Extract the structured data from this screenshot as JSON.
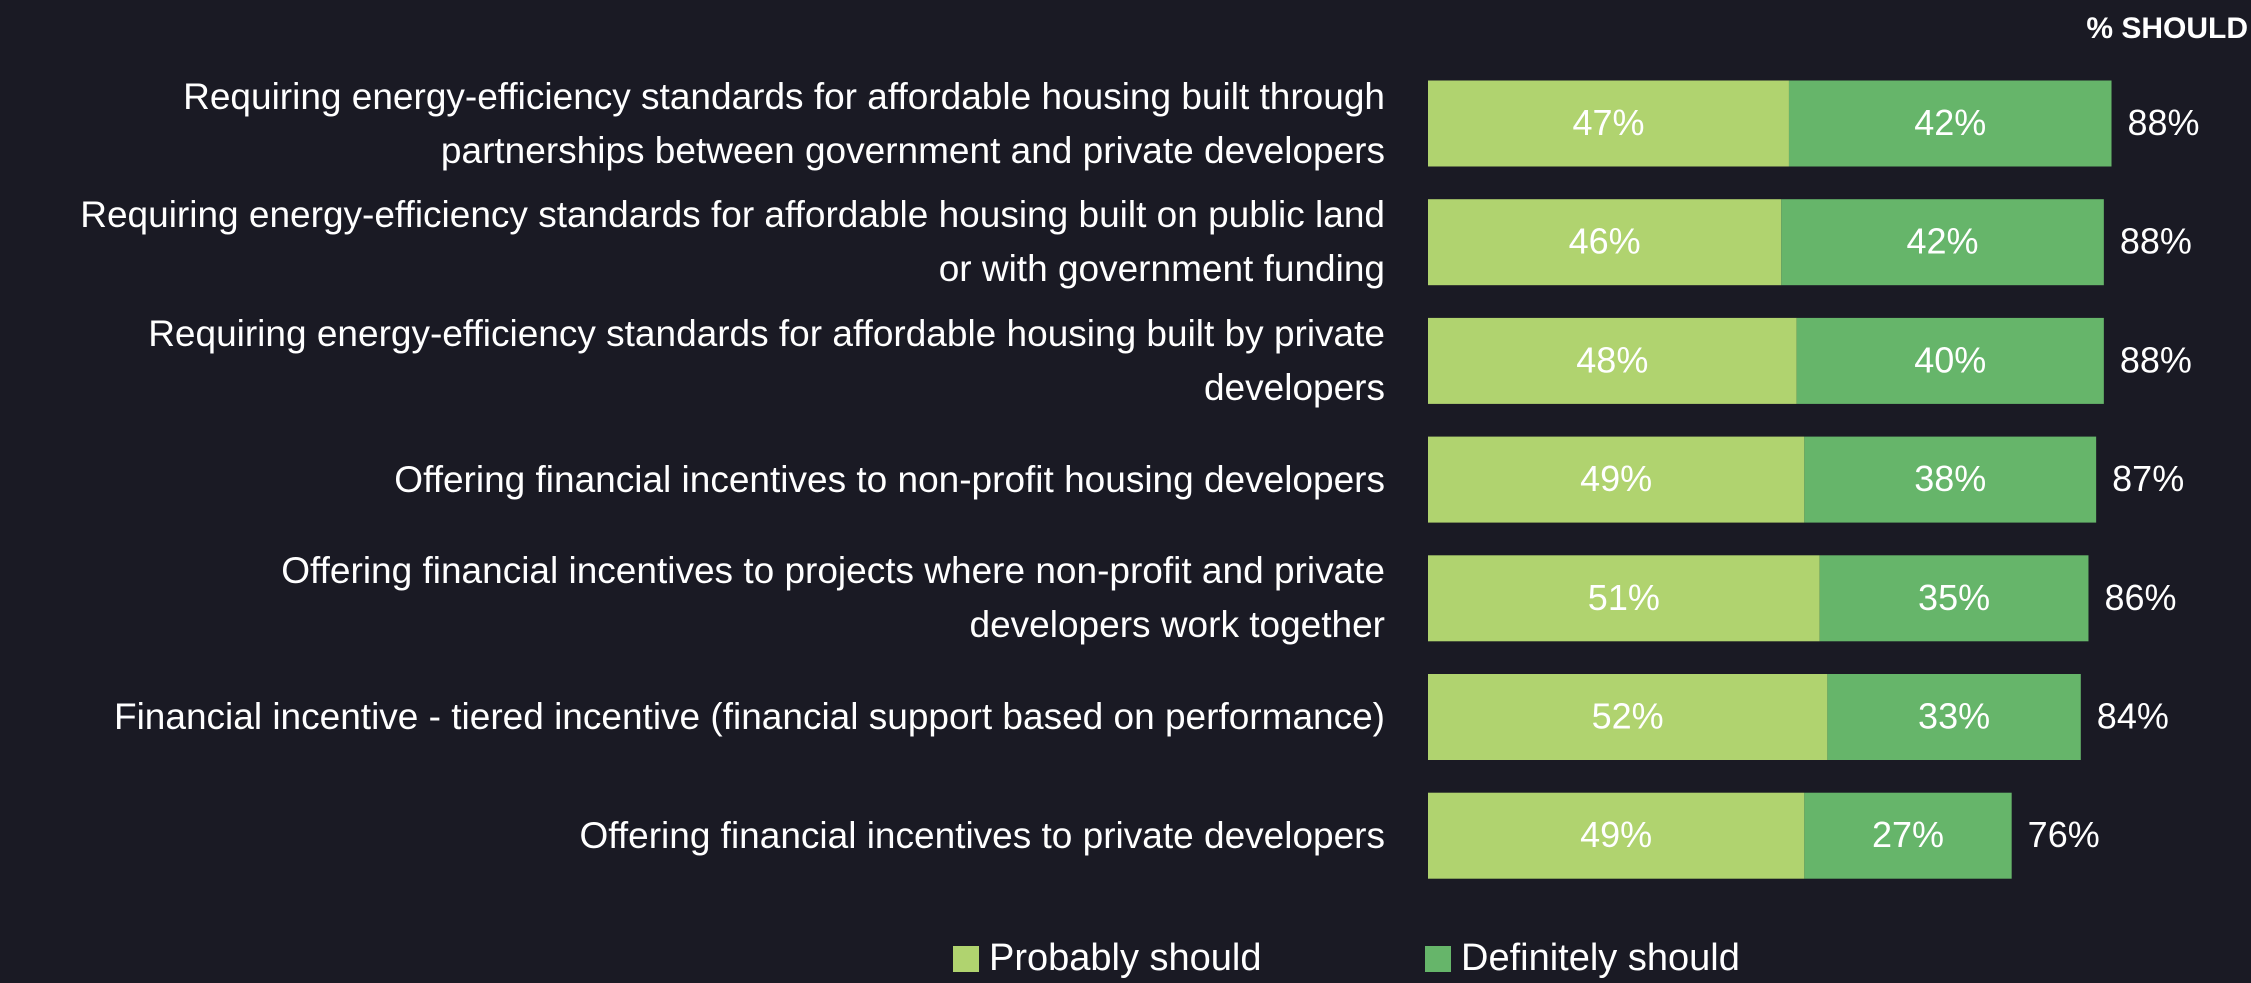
{
  "chart_data": {
    "type": "stacked-bar-horizontal",
    "totals_label": "% SHOULD",
    "categories": [
      "Requiring energy-efficiency standards for affordable housing built through\npartnerships between government and private developers",
      "Requiring energy-efficiency standards for affordable housing built on public land\nor with government funding",
      "Requiring energy-efficiency standards for affordable housing built by private\ndevelopers",
      "Offering financial incentives to non-profit housing developers",
      "Offering financial incentives to projects where non-profit and private\ndevelopers work together",
      "Financial incentive - tiered incentive (financial support based on performance)",
      "Offering financial incentives to private developers"
    ],
    "series": [
      {
        "name": "Probably should",
        "color": "#b0d36f",
        "values": [
          47,
          46,
          48,
          49,
          51,
          52,
          49
        ],
        "value_labels": [
          "47%",
          "46%",
          "48%",
          "49%",
          "51%",
          "52%",
          "49%"
        ]
      },
      {
        "name": "Definitely should",
        "color": "#66b56a",
        "values": [
          42,
          42,
          40,
          38,
          35,
          33,
          27
        ],
        "value_labels": [
          "42%",
          "42%",
          "40%",
          "38%",
          "35%",
          "33%",
          "27%"
        ]
      }
    ],
    "totals": [
      88,
      88,
      88,
      87,
      86,
      84,
      76
    ],
    "totals_labels": [
      "88%",
      "88%",
      "88%",
      "87%",
      "86%",
      "84%",
      "76%"
    ]
  }
}
